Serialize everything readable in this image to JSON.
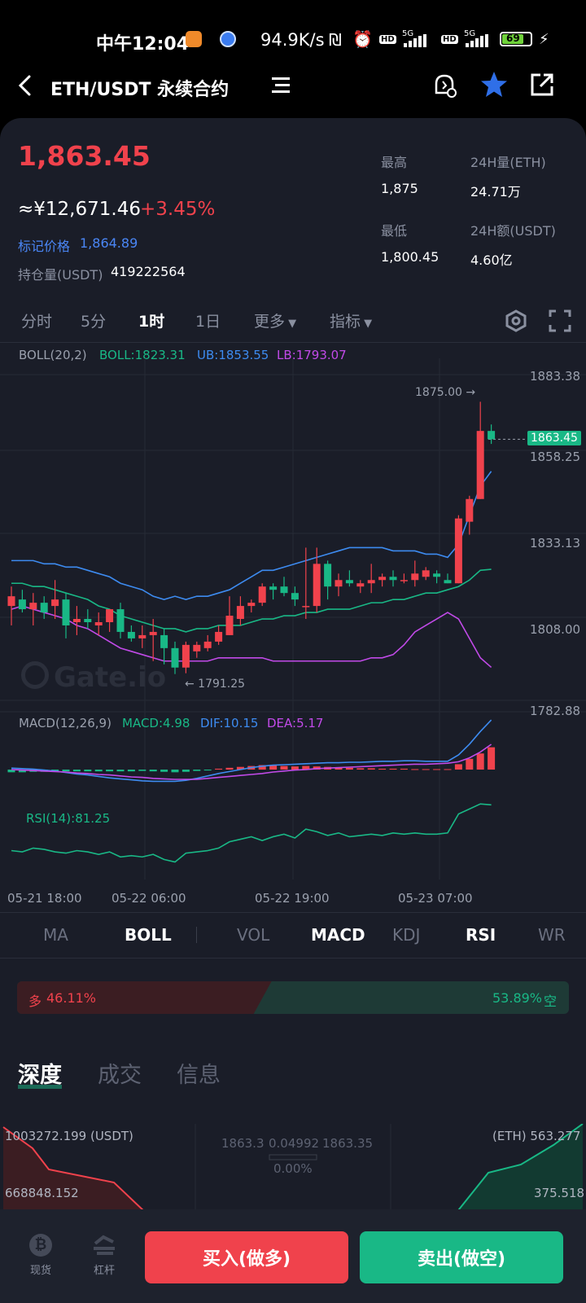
{
  "status_bar": {
    "time": "中午12:04",
    "network_speed": "94.9K/s",
    "signal_label_1": "5G",
    "signal_label_2": "5G",
    "hd_1": "HD",
    "hd_2": "HD",
    "battery": "69"
  },
  "header": {
    "title": "ETH/USDT 永续合约"
  },
  "ticker": {
    "price": "1,863.45",
    "cny_price": "≈¥12,671.46",
    "change": "+3.45%",
    "mark_label": "标记价格",
    "mark_value": "1,864.89",
    "oi_label": "持仓量(USDT)",
    "oi_value": "419222564",
    "high_label": "最高",
    "high_value": "1,875",
    "vol_eth_label": "24H量(ETH)",
    "vol_eth_value": "24.71万",
    "low_label": "最低",
    "low_value": "1,800.45",
    "vol_usdt_label": "24H额(USDT)",
    "vol_usdt_value": "4.60亿"
  },
  "timeframes": {
    "items": [
      "分时",
      "5分",
      "1时",
      "1日"
    ],
    "active": "1时",
    "more": "更多",
    "indicators": "指标"
  },
  "boll_legend": {
    "name": "BOLL(20,2)",
    "boll": "BOLL:1823.31",
    "ub": "UB:1853.55",
    "lb": "LB:1793.07"
  },
  "chart_data": {
    "type": "candlestick",
    "price_axis": [
      "1883.38",
      "1858.25",
      "1833.13",
      "1808.00",
      "1782.88"
    ],
    "current_price_tag": "1863.45",
    "max_annotation": "1875.00 →",
    "min_annotation": "← 1791.25",
    "watermark": "Gate.io",
    "x_labels": [
      "05-21 18:00",
      "05-22 06:00",
      "05-22 19:00",
      "05-23 07:00"
    ],
    "candles": [
      {
        "o": 1812,
        "h": 1818,
        "l": 1806,
        "c": 1815
      },
      {
        "o": 1814,
        "h": 1817,
        "l": 1810,
        "c": 1811
      },
      {
        "o": 1811,
        "h": 1816,
        "l": 1806,
        "c": 1813
      },
      {
        "o": 1813,
        "h": 1815,
        "l": 1808,
        "c": 1810
      },
      {
        "o": 1812,
        "h": 1820,
        "l": 1808,
        "c": 1814
      },
      {
        "o": 1814,
        "h": 1816,
        "l": 1802,
        "c": 1806
      },
      {
        "o": 1807,
        "h": 1812,
        "l": 1803,
        "c": 1808
      },
      {
        "o": 1808,
        "h": 1811,
        "l": 1805,
        "c": 1807
      },
      {
        "o": 1806,
        "h": 1810,
        "l": 1803,
        "c": 1807
      },
      {
        "o": 1807,
        "h": 1811,
        "l": 1804,
        "c": 1811
      },
      {
        "o": 1811,
        "h": 1813,
        "l": 1802,
        "c": 1804
      },
      {
        "o": 1804,
        "h": 1806,
        "l": 1801,
        "c": 1802
      },
      {
        "o": 1802,
        "h": 1806,
        "l": 1799,
        "c": 1803
      },
      {
        "o": 1803,
        "h": 1808,
        "l": 1795,
        "c": 1804
      },
      {
        "o": 1803,
        "h": 1805,
        "l": 1794,
        "c": 1799
      },
      {
        "o": 1799,
        "h": 1801,
        "l": 1791,
        "c": 1793
      },
      {
        "o": 1793,
        "h": 1801,
        "l": 1791.25,
        "c": 1800
      },
      {
        "o": 1798,
        "h": 1801,
        "l": 1796,
        "c": 1800
      },
      {
        "o": 1799,
        "h": 1803,
        "l": 1798,
        "c": 1801
      },
      {
        "o": 1801,
        "h": 1806,
        "l": 1800,
        "c": 1804
      },
      {
        "o": 1803,
        "h": 1815,
        "l": 1803,
        "c": 1809
      },
      {
        "o": 1808,
        "h": 1815,
        "l": 1806,
        "c": 1812
      },
      {
        "o": 1812,
        "h": 1814,
        "l": 1810,
        "c": 1813
      },
      {
        "o": 1813,
        "h": 1819,
        "l": 1812,
        "c": 1818
      },
      {
        "o": 1818,
        "h": 1819,
        "l": 1814,
        "c": 1817
      },
      {
        "o": 1818,
        "h": 1821,
        "l": 1815,
        "c": 1816
      },
      {
        "o": 1816,
        "h": 1818,
        "l": 1812,
        "c": 1814
      },
      {
        "o": 1812,
        "h": 1830,
        "l": 1808,
        "c": 1812
      },
      {
        "o": 1812,
        "h": 1830,
        "l": 1810,
        "c": 1825
      },
      {
        "o": 1825,
        "h": 1826,
        "l": 1814,
        "c": 1818
      },
      {
        "o": 1818,
        "h": 1822,
        "l": 1815,
        "c": 1820
      },
      {
        "o": 1820,
        "h": 1823,
        "l": 1818,
        "c": 1819
      },
      {
        "o": 1818,
        "h": 1820,
        "l": 1816,
        "c": 1819
      },
      {
        "o": 1819,
        "h": 1825,
        "l": 1816,
        "c": 1820
      },
      {
        "o": 1820,
        "h": 1822,
        "l": 1818,
        "c": 1821
      },
      {
        "o": 1821,
        "h": 1823,
        "l": 1818,
        "c": 1820
      },
      {
        "o": 1820,
        "h": 1822,
        "l": 1819,
        "c": 1820
      },
      {
        "o": 1820,
        "h": 1826,
        "l": 1818,
        "c": 1822
      },
      {
        "o": 1821,
        "h": 1824,
        "l": 1820,
        "c": 1823
      },
      {
        "o": 1822,
        "h": 1823,
        "l": 1819,
        "c": 1821
      },
      {
        "o": 1820,
        "h": 1822,
        "l": 1819,
        "c": 1819
      },
      {
        "o": 1819,
        "h": 1840,
        "l": 1819,
        "c": 1839
      },
      {
        "o": 1838,
        "h": 1846,
        "l": 1834,
        "c": 1845
      },
      {
        "o": 1845,
        "h": 1875,
        "l": 1845,
        "c": 1866
      },
      {
        "o": 1866,
        "h": 1868,
        "l": 1862,
        "c": 1863.45
      }
    ],
    "boll_upper": [
      1826,
      1826,
      1826,
      1825,
      1825,
      1824,
      1824,
      1823,
      1822,
      1821,
      1819,
      1818,
      1817,
      1815,
      1814,
      1815,
      1814,
      1815,
      1815,
      1816,
      1817,
      1819,
      1821,
      1823,
      1823,
      1824,
      1825,
      1826,
      1827,
      1828,
      1829,
      1830,
      1830,
      1830,
      1830,
      1829,
      1829,
      1829,
      1828,
      1828,
      1827,
      1831,
      1840,
      1849,
      1853.55
    ],
    "boll_mid": [
      1819,
      1819,
      1818,
      1818,
      1817,
      1816,
      1815,
      1814,
      1812,
      1811,
      1809,
      1808,
      1807,
      1806,
      1805,
      1805,
      1804,
      1805,
      1805,
      1806,
      1806,
      1806,
      1807,
      1808,
      1808,
      1809,
      1809,
      1810,
      1810,
      1811,
      1811,
      1811,
      1812,
      1813,
      1813,
      1814,
      1814,
      1815,
      1816,
      1816,
      1817,
      1818,
      1820,
      1823,
      1823.31
    ],
    "boll_lower": [
      1811,
      1812,
      1811,
      1810,
      1809,
      1808,
      1806,
      1805,
      1803,
      1801,
      1799,
      1798,
      1797,
      1796,
      1795,
      1795,
      1795,
      1795,
      1795,
      1796,
      1796,
      1796,
      1796,
      1796,
      1795,
      1795,
      1795,
      1795,
      1795,
      1795,
      1795,
      1795,
      1795,
      1796,
      1796,
      1797,
      1800,
      1804,
      1806,
      1808,
      1810,
      1808,
      1802,
      1796,
      1793.07
    ],
    "macd_legend": {
      "name": "MACD(12,26,9)",
      "macd": "MACD:4.98",
      "dif": "DIF:10.15",
      "dea": "DEA:5.17"
    },
    "macd_hist": [
      -0.6,
      -0.6,
      -0.5,
      -0.5,
      -0.4,
      -0.4,
      -0.4,
      -0.4,
      -0.4,
      -0.4,
      -0.4,
      -0.4,
      -0.3,
      -0.4,
      -0.5,
      -0.6,
      -0.5,
      -0.3,
      -0.2,
      0.2,
      0.4,
      0.6,
      0.8,
      1.0,
      0.9,
      0.8,
      0.7,
      0.8,
      0.7,
      0.6,
      0.5,
      0.4,
      0.3,
      0.3,
      0.2,
      0.2,
      0.2,
      0.1,
      0.1,
      0.1,
      0.1,
      1.2,
      2.4,
      3.6,
      4.98
    ],
    "macd_dif": [
      0.3,
      0.2,
      0.1,
      -0.1,
      -0.3,
      -0.6,
      -0.9,
      -1.1,
      -1.4,
      -1.7,
      -1.9,
      -2.1,
      -2.3,
      -2.4,
      -2.4,
      -2.4,
      -2.2,
      -1.8,
      -1.3,
      -0.8,
      -0.4,
      0.0,
      0.4,
      0.7,
      0.9,
      1.0,
      1.1,
      1.2,
      1.3,
      1.4,
      1.4,
      1.5,
      1.5,
      1.6,
      1.7,
      1.7,
      1.8,
      1.8,
      1.7,
      1.7,
      1.7,
      3.0,
      5.2,
      7.8,
      10.15
    ],
    "macd_dea": [
      0.0,
      -0.1,
      -0.2,
      -0.3,
      -0.4,
      -0.5,
      -0.7,
      -0.8,
      -1.0,
      -1.1,
      -1.3,
      -1.5,
      -1.6,
      -1.8,
      -1.9,
      -2.0,
      -2.0,
      -2.0,
      -1.8,
      -1.6,
      -1.4,
      -1.2,
      -1.0,
      -0.8,
      -0.5,
      -0.3,
      -0.1,
      0.0,
      0.2,
      0.3,
      0.4,
      0.5,
      0.6,
      0.7,
      0.8,
      0.9,
      1.0,
      1.1,
      1.1,
      1.2,
      1.3,
      1.6,
      2.4,
      3.6,
      5.17
    ],
    "rsi_legend": "RSI(14):81.25",
    "rsi": [
      45,
      44,
      47,
      46,
      44,
      43,
      45,
      44,
      42,
      44,
      40,
      41,
      40,
      42,
      38,
      36,
      43,
      44,
      45,
      47,
      52,
      54,
      56,
      53,
      56,
      58,
      55,
      62,
      60,
      57,
      59,
      56,
      57,
      58,
      57,
      59,
      58,
      59,
      58,
      58,
      59,
      74,
      78,
      82,
      81.25
    ]
  },
  "indicator_tabs": {
    "items": [
      "MA",
      "BOLL",
      "VOL",
      "MACD",
      "KDJ",
      "RSI",
      "WR"
    ],
    "active": [
      "BOLL",
      "MACD",
      "RSI"
    ]
  },
  "long_short": {
    "long_label": "多",
    "long_pct": "46.11%",
    "short_pct": "53.89%",
    "short_label": "空",
    "long_ratio": 0.4611
  },
  "lower_tabs": {
    "items": [
      "深度",
      "成交",
      "信息"
    ],
    "active": "深度"
  },
  "depth": {
    "left_total": "1003272.199 (USDT)",
    "left_mid": "668848.152",
    "right_total": "(ETH) 563.277",
    "right_mid": "375.518",
    "bid": "1863.3",
    "spread": "0.04992",
    "ask": "1863.35",
    "spread_pct": "0.00%"
  },
  "bottom_bar": {
    "spot_label": "现货",
    "margin_label": "杠杆",
    "buy_label": "买入(做多)",
    "sell_label": "卖出(做空)"
  },
  "colors": {
    "up": "#f0424c",
    "down": "#19b886",
    "upper_band": "#3d8bf0",
    "mid_band": "#19b886",
    "lower_band": "#c14ae8",
    "background": "#1a1d28",
    "accent_blue": "#2f6fe8"
  }
}
